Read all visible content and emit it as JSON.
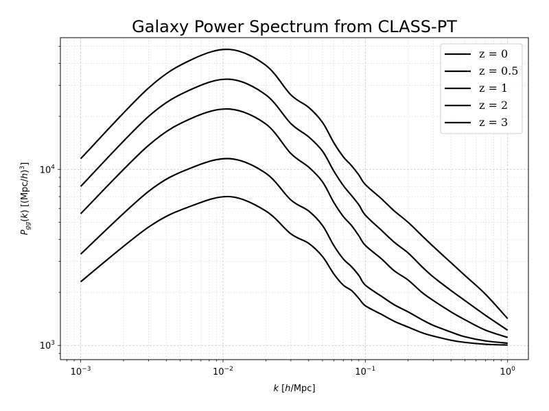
{
  "chart_data": {
    "type": "line",
    "title": "Galaxy Power Spectrum from CLASS-PT",
    "xlabel": "k [h/Mpc]",
    "ylabel": "P_gg(k) [(Mpc/h)^3]",
    "xscale": "log",
    "yscale": "log",
    "xlim": [
      0.00072,
      1.4
    ],
    "ylim": [
      830,
      56000
    ],
    "x_ticks": [
      {
        "value": 0.001,
        "base": "10",
        "exp": "−3"
      },
      {
        "value": 0.01,
        "base": "10",
        "exp": "−2"
      },
      {
        "value": 0.1,
        "base": "10",
        "exp": "−1"
      },
      {
        "value": 1,
        "base": "10",
        "exp": "0"
      }
    ],
    "y_ticks": [
      {
        "value": 1000,
        "base": "10",
        "exp": "3"
      },
      {
        "value": 10000,
        "base": "10",
        "exp": "4"
      }
    ],
    "grid": true,
    "legend_position": "top-right",
    "line_color": "#000000",
    "x": [
      0.001,
      0.003,
      0.006,
      0.0112,
      0.02,
      0.03,
      0.04,
      0.05,
      0.06,
      0.07,
      0.08,
      0.09,
      0.1,
      0.13,
      0.16,
      0.2,
      0.25,
      0.3,
      0.4,
      0.5,
      0.7,
      1.0
    ],
    "series": [
      {
        "name": "z = 0",
        "values": [
          11500,
          29000,
          42000,
          48000,
          39000,
          26500,
          22500,
          18500,
          14200,
          11800,
          10500,
          9300,
          8200,
          6800,
          5800,
          5000,
          4200,
          3650,
          2950,
          2500,
          1950,
          1420
        ]
      },
      {
        "name": "z = 0.5",
        "values": [
          8000,
          20000,
          28500,
          32500,
          26500,
          18200,
          15300,
          12700,
          9800,
          8100,
          7100,
          6300,
          5500,
          4500,
          3850,
          3350,
          2800,
          2450,
          2050,
          1800,
          1480,
          1220
        ]
      },
      {
        "name": "z = 1",
        "values": [
          5600,
          13700,
          19500,
          22000,
          18100,
          12300,
          10300,
          8500,
          6500,
          5400,
          4800,
          4200,
          3700,
          3100,
          2650,
          2350,
          2000,
          1800,
          1550,
          1400,
          1220,
          1110
        ]
      },
      {
        "name": "z = 2",
        "values": [
          3300,
          7500,
          10200,
          11500,
          9500,
          6700,
          5800,
          4800,
          3700,
          3100,
          2800,
          2500,
          2200,
          1900,
          1700,
          1550,
          1400,
          1300,
          1190,
          1120,
          1060,
          1030
        ]
      },
      {
        "name": "z = 3",
        "values": [
          2300,
          4700,
          6200,
          7000,
          5800,
          4300,
          3800,
          3200,
          2550,
          2200,
          2050,
          1850,
          1680,
          1500,
          1370,
          1270,
          1180,
          1130,
          1070,
          1040,
          1015,
          1005
        ]
      }
    ]
  }
}
